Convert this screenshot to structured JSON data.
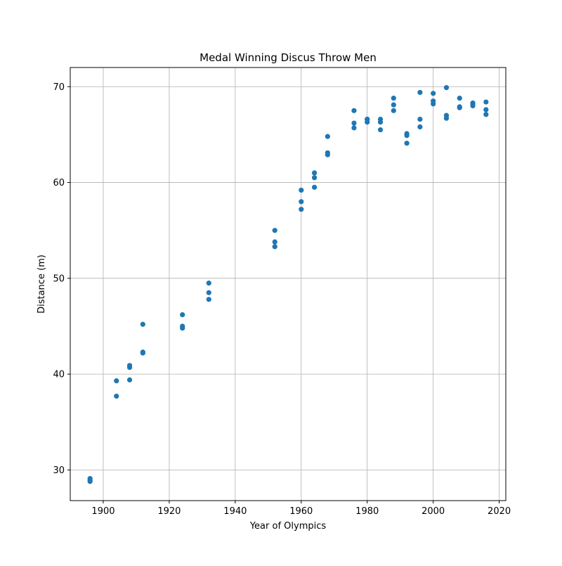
{
  "chart_data": {
    "type": "scatter",
    "title": "Medal Winning Discus Throw Men",
    "xlabel": "Year of Olympics",
    "ylabel": "Distance (m)",
    "xlim": [
      1890,
      2022
    ],
    "ylim": [
      26.8,
      72
    ],
    "xticks": [
      1900,
      1920,
      1940,
      1960,
      1980,
      2000,
      2020
    ],
    "yticks": [
      30,
      40,
      50,
      60,
      70
    ],
    "grid": true,
    "marker_color": "#1f77b4",
    "points": [
      {
        "x": 1896,
        "y": 29.1
      },
      {
        "x": 1896,
        "y": 28.9
      },
      {
        "x": 1896,
        "y": 28.8
      },
      {
        "x": 1904,
        "y": 39.3
      },
      {
        "x": 1904,
        "y": 37.7
      },
      {
        "x": 1908,
        "y": 40.9
      },
      {
        "x": 1908,
        "y": 40.7
      },
      {
        "x": 1908,
        "y": 39.4
      },
      {
        "x": 1912,
        "y": 45.2
      },
      {
        "x": 1912,
        "y": 42.3
      },
      {
        "x": 1912,
        "y": 42.2
      },
      {
        "x": 1924,
        "y": 46.2
      },
      {
        "x": 1924,
        "y": 45.0
      },
      {
        "x": 1924,
        "y": 44.8
      },
      {
        "x": 1932,
        "y": 49.5
      },
      {
        "x": 1932,
        "y": 48.5
      },
      {
        "x": 1932,
        "y": 47.8
      },
      {
        "x": 1952,
        "y": 55.0
      },
      {
        "x": 1952,
        "y": 53.8
      },
      {
        "x": 1952,
        "y": 53.3
      },
      {
        "x": 1960,
        "y": 59.2
      },
      {
        "x": 1960,
        "y": 58.0
      },
      {
        "x": 1960,
        "y": 57.2
      },
      {
        "x": 1964,
        "y": 61.0
      },
      {
        "x": 1964,
        "y": 60.5
      },
      {
        "x": 1964,
        "y": 59.5
      },
      {
        "x": 1968,
        "y": 64.8
      },
      {
        "x": 1968,
        "y": 63.1
      },
      {
        "x": 1968,
        "y": 62.9
      },
      {
        "x": 1976,
        "y": 67.5
      },
      {
        "x": 1976,
        "y": 66.2
      },
      {
        "x": 1976,
        "y": 65.7
      },
      {
        "x": 1980,
        "y": 66.6
      },
      {
        "x": 1980,
        "y": 66.6
      },
      {
        "x": 1980,
        "y": 66.3
      },
      {
        "x": 1984,
        "y": 66.6
      },
      {
        "x": 1984,
        "y": 66.3
      },
      {
        "x": 1984,
        "y": 65.5
      },
      {
        "x": 1988,
        "y": 68.8
      },
      {
        "x": 1988,
        "y": 68.1
      },
      {
        "x": 1988,
        "y": 67.5
      },
      {
        "x": 1992,
        "y": 65.1
      },
      {
        "x": 1992,
        "y": 64.9
      },
      {
        "x": 1992,
        "y": 64.1
      },
      {
        "x": 1996,
        "y": 69.4
      },
      {
        "x": 1996,
        "y": 66.6
      },
      {
        "x": 1996,
        "y": 65.8
      },
      {
        "x": 2000,
        "y": 69.3
      },
      {
        "x": 2000,
        "y": 68.5
      },
      {
        "x": 2000,
        "y": 68.2
      },
      {
        "x": 2004,
        "y": 69.9
      },
      {
        "x": 2004,
        "y": 67.0
      },
      {
        "x": 2004,
        "y": 66.7
      },
      {
        "x": 2008,
        "y": 68.8
      },
      {
        "x": 2008,
        "y": 67.9
      },
      {
        "x": 2008,
        "y": 67.8
      },
      {
        "x": 2012,
        "y": 68.3
      },
      {
        "x": 2012,
        "y": 68.2
      },
      {
        "x": 2012,
        "y": 68.0
      },
      {
        "x": 2016,
        "y": 68.4
      },
      {
        "x": 2016,
        "y": 67.6
      },
      {
        "x": 2016,
        "y": 67.1
      }
    ]
  }
}
